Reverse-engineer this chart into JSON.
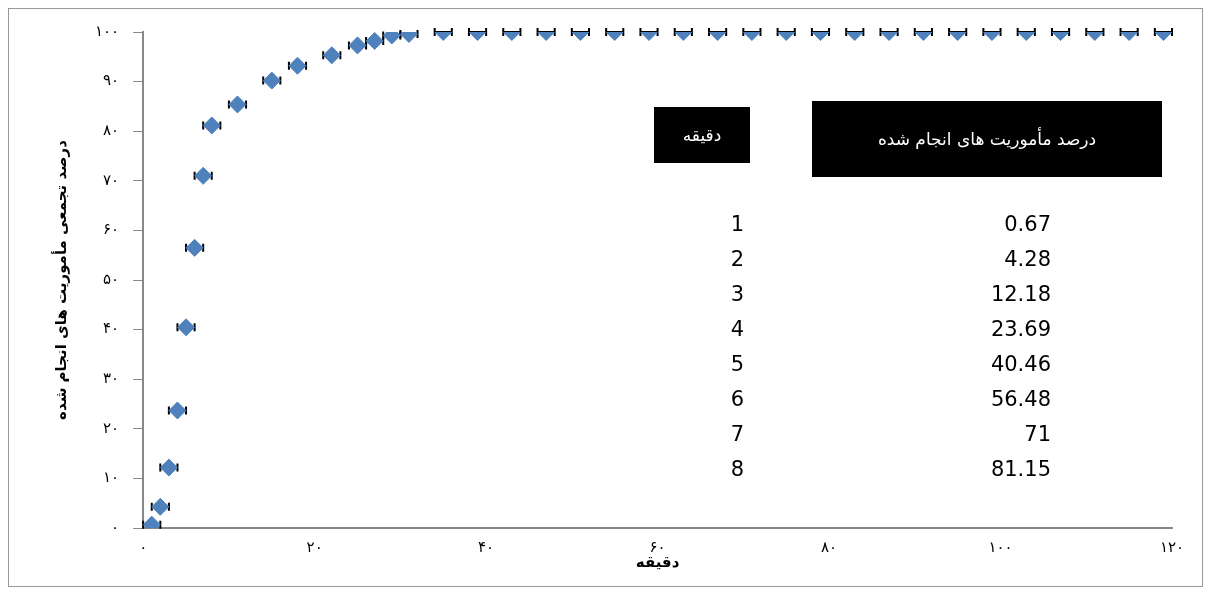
{
  "chart_data": {
    "type": "scatter",
    "xlabel": "دقیقه",
    "ylabel": "درصد تجمعی مأموریت های انجام شده",
    "x": [
      1,
      2,
      3,
      4,
      5,
      6,
      7,
      8,
      11,
      15,
      18,
      22,
      25,
      27,
      29,
      31,
      35,
      39,
      43,
      47,
      51,
      55,
      59,
      63,
      67,
      71,
      75,
      79,
      83,
      87,
      91,
      95,
      99,
      103,
      107,
      111,
      115,
      119
    ],
    "series": [
      {
        "color": "#4f81bd",
        "values": [
          0.67,
          4.28,
          12.18,
          23.69,
          40.46,
          56.48,
          71,
          81.15,
          85.4,
          90.2,
          93.2,
          95.3,
          97.3,
          98.2,
          99.3,
          99.6,
          100,
          100,
          100,
          100,
          100,
          100,
          100,
          100,
          100,
          100,
          100,
          100,
          100,
          100,
          100,
          100,
          100,
          100,
          100,
          100,
          100,
          100
        ],
        "xerrors": [
          1,
          1,
          1,
          1,
          1,
          1,
          1,
          1,
          1,
          1,
          1,
          1,
          1,
          1,
          1,
          1,
          1,
          1,
          1,
          1,
          1,
          1,
          1,
          1,
          1,
          1,
          1,
          1,
          1,
          1,
          1,
          1,
          1,
          1,
          1,
          1,
          1,
          1
        ]
      }
    ],
    "xlim": [
      0,
      120
    ],
    "xticks": [
      {
        "value": 0,
        "label": "۰"
      },
      {
        "value": 20,
        "label": "۲۰"
      },
      {
        "value": 40,
        "label": "۴۰"
      },
      {
        "value": 60,
        "label": "۶۰"
      },
      {
        "value": 80,
        "label": "۸۰"
      },
      {
        "value": 100,
        "label": "۱۰۰"
      },
      {
        "value": 120,
        "label": "۱۲۰"
      }
    ],
    "ylim": [
      0,
      100
    ],
    "yticks": [
      {
        "value": 0,
        "label": "۰"
      },
      {
        "value": 10,
        "label": "۱۰"
      },
      {
        "value": 20,
        "label": "۲۰"
      },
      {
        "value": 30,
        "label": "۳۰"
      },
      {
        "value": 40,
        "label": "۴۰"
      },
      {
        "value": 50,
        "label": "۵۰"
      },
      {
        "value": 60,
        "label": "۶۰"
      },
      {
        "value": 70,
        "label": "۷۰"
      },
      {
        "value": 80,
        "label": "۸۰"
      },
      {
        "value": 90,
        "label": "۹۰"
      },
      {
        "value": 100,
        "label": "۱۰۰"
      }
    ],
    "grid": false,
    "legend": false,
    "marker": "diamond",
    "annotations": [
      "دقیقه",
      "درصد مأموریت های انجام شده",
      "1",
      "0.67",
      "2",
      "4.28",
      "3",
      "12.18",
      "4",
      "23.69",
      "5",
      "40.46",
      "6",
      "56.48",
      "7",
      "71",
      "8",
      "81.15"
    ]
  }
}
